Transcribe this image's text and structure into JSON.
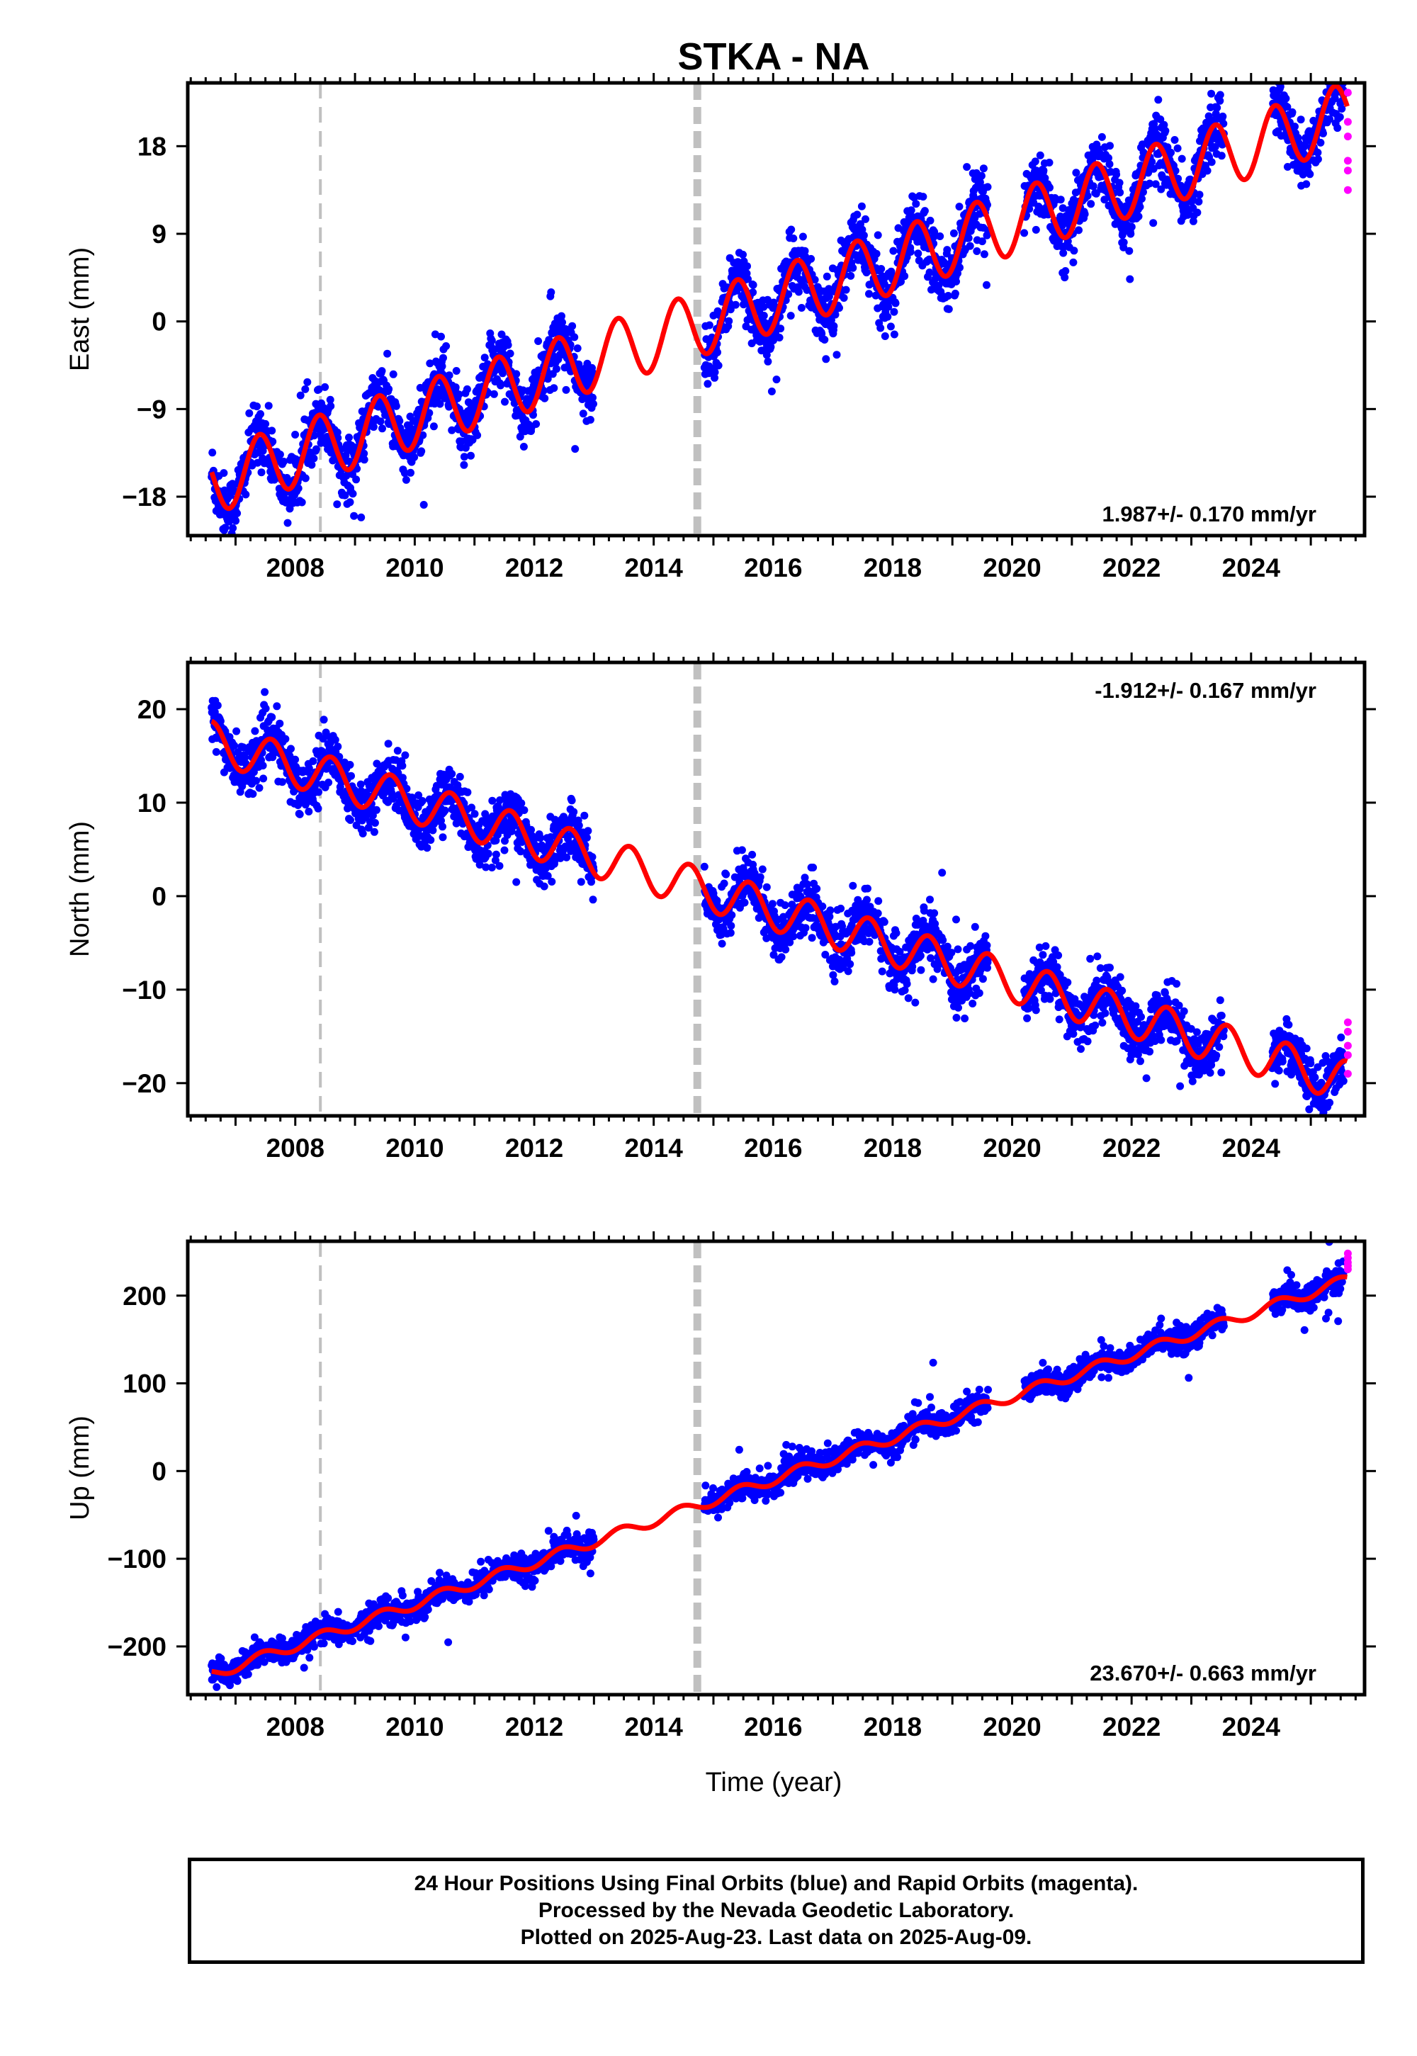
{
  "chart_data": {
    "type": "scatter",
    "title": "STKA - NA",
    "xlabel": "Time (year)",
    "xlim": [
      2006.2,
      2025.9
    ],
    "xticks": [
      2008,
      2010,
      2012,
      2014,
      2016,
      2018,
      2020,
      2022,
      2024
    ],
    "vertical_markers": [
      {
        "x": 2008.42,
        "style": "dashed-thin"
      },
      {
        "x": 2014.73,
        "style": "dashed-thick"
      }
    ],
    "colors": {
      "final": "#0000ff",
      "rapid": "#ff00ff",
      "model": "#ff0000",
      "marker": "#c0c0c0"
    },
    "series": [
      {
        "name": "Final Orbits",
        "color": "#0000ff"
      },
      {
        "name": "Rapid Orbits",
        "color": "#ff00ff"
      }
    ],
    "panels": [
      {
        "id": "east",
        "ylabel": "East (mm)",
        "ylim": [
          -22,
          24.5
        ],
        "yticks": [
          -18,
          -9,
          0,
          9,
          18
        ],
        "rate_label": "1.987+/- 0.170 mm/yr",
        "rate_position": "bottom-right",
        "trend": {
          "t0": 2006.6,
          "y0": -16.5,
          "slope": 1.987,
          "amp": 3.3,
          "phase": 0.15
        },
        "gaps": [
          [
            2013.0,
            2014.85
          ],
          [
            2019.6,
            2020.2
          ],
          [
            2023.55,
            2024.35
          ]
        ],
        "data_range": [
          2006.6,
          2025.55
        ],
        "noise": 1.6,
        "rapid": [
          {
            "x": 2025.62,
            "y": [
              23.5,
              20.5,
              19.0,
              16.5,
              15.5,
              13.5
            ]
          }
        ]
      },
      {
        "id": "north",
        "ylabel": "North (mm)",
        "ylim": [
          -23.5,
          25
        ],
        "yticks": [
          -20,
          -10,
          0,
          10,
          20
        ],
        "rate_label": "-1.912+/- 0.167 mm/yr",
        "rate_position": "top-right",
        "trend": {
          "t0": 2006.6,
          "y0": 16.5,
          "slope": -1.912,
          "amp": 2.2,
          "phase": 0.35
        },
        "gaps": [
          [
            2013.0,
            2014.85
          ],
          [
            2019.6,
            2020.2
          ],
          [
            2023.55,
            2024.35
          ]
        ],
        "data_range": [
          2006.6,
          2025.55
        ],
        "noise": 1.4,
        "rapid": [
          {
            "x": 2025.62,
            "y": [
              -13.5,
              -14.5,
              -16.0,
              -17.0,
              -19.0
            ]
          }
        ]
      },
      {
        "id": "up",
        "ylabel": "Up (mm)",
        "ylim": [
          -255,
          262
        ],
        "yticks": [
          -200,
          -100,
          0,
          100,
          200
        ],
        "rate_label": "23.670+/- 0.663 mm/yr",
        "rate_position": "bottom-right",
        "trend": {
          "t0": 2006.6,
          "y0": -232,
          "slope": 23.67,
          "amp": 6.0,
          "phase": 0.2
        },
        "gaps": [
          [
            2013.0,
            2014.85
          ],
          [
            2019.6,
            2020.2
          ],
          [
            2023.55,
            2024.35
          ]
        ],
        "data_range": [
          2006.6,
          2025.55
        ],
        "noise": 7.0,
        "rapid": [
          {
            "x": 2025.62,
            "y": [
              248,
              243,
              238,
              234,
              230
            ]
          }
        ]
      }
    ]
  },
  "caption": {
    "line1": "24 Hour Positions Using Final Orbits (blue) and Rapid Orbits (magenta).",
    "line2": "Processed by the Nevada Geodetic Laboratory.",
    "line3": "Plotted on 2025-Aug-23. Last data on 2025-Aug-09."
  }
}
